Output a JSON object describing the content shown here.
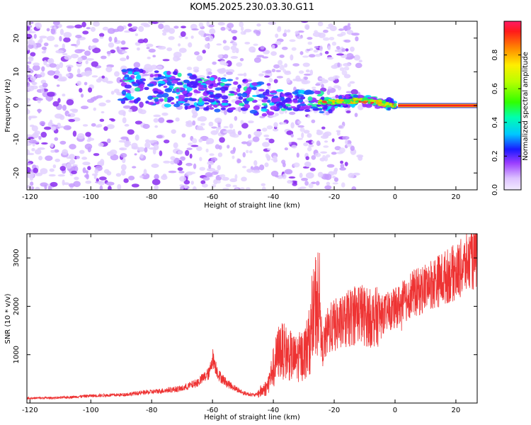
{
  "title": "KOM5.2025.230.03.30.G11",
  "chart_data": [
    {
      "type": "heatmap",
      "name": "spectrogram",
      "xlabel": "Height of straight line (km)",
      "ylabel": "Frequency (Hz)",
      "xlim": [
        -121,
        27
      ],
      "ylim": [
        -25,
        25
      ],
      "xticks": [
        -120,
        -100,
        -80,
        -60,
        -40,
        -20,
        0,
        20
      ],
      "yticks": [
        -20,
        -10,
        0,
        10,
        20
      ],
      "xtick_labels": [
        "-120",
        "-100",
        "-80",
        "-60",
        "-40",
        "-20",
        "0",
        "20"
      ],
      "ytick_labels": [
        "-20",
        "-10",
        "0",
        "10",
        "20"
      ],
      "ridge": {
        "description_points_x": [
          -88,
          -70,
          -50,
          -40,
          -25,
          -10,
          0,
          27
        ],
        "frequency_hz": [
          6,
          4.5,
          2.5,
          2,
          1,
          1.5,
          0,
          0
        ]
      },
      "colorbar": {
        "label": "Normalized spectral amplitude",
        "range": [
          0,
          1
        ],
        "ticks": [
          0.0,
          0.2,
          0.4,
          0.6,
          0.8
        ],
        "tick_labels": [
          "0.0",
          "0.2",
          "0.4",
          "0.6",
          "0.8"
        ]
      }
    },
    {
      "type": "line",
      "name": "snr",
      "xlabel": "Height of straight line (km)",
      "ylabel": "SNR (10 * v/v)",
      "xlim": [
        -121,
        27
      ],
      "ylim": [
        0,
        3500
      ],
      "xticks": [
        -120,
        -100,
        -80,
        -60,
        -40,
        -20,
        0,
        20
      ],
      "yticks": [
        1000,
        2000,
        3000
      ],
      "xtick_labels": [
        "-120",
        "-100",
        "-80",
        "-60",
        "-40",
        "-20",
        "0",
        "20"
      ],
      "ytick_labels": [
        "1000",
        "2000",
        "3000"
      ],
      "series": [
        {
          "name": "SNR",
          "color": "#ee3333",
          "x": [
            -121,
            -110,
            -100,
            -90,
            -80,
            -70,
            -65,
            -61,
            -60,
            -58,
            -55,
            -50,
            -46,
            -42,
            -40,
            -38,
            -36,
            -33,
            -30,
            -28,
            -25,
            -24,
            -22,
            -20,
            -17,
            -15,
            -12,
            -10,
            -8,
            -5,
            -2,
            0,
            3,
            5,
            8,
            10,
            13,
            15,
            18,
            20,
            23,
            25,
            27
          ],
          "values": [
            100,
            110,
            150,
            170,
            230,
            300,
            420,
            620,
            950,
            580,
            400,
            210,
            160,
            330,
            750,
            1100,
            1050,
            900,
            1000,
            1300,
            2500,
            1100,
            1500,
            1600,
            1650,
            1750,
            1900,
            1800,
            1750,
            1800,
            1900,
            1950,
            2100,
            2250,
            2300,
            2400,
            2500,
            2550,
            2650,
            2700,
            2850,
            2950,
            3000
          ]
        }
      ]
    }
  ]
}
